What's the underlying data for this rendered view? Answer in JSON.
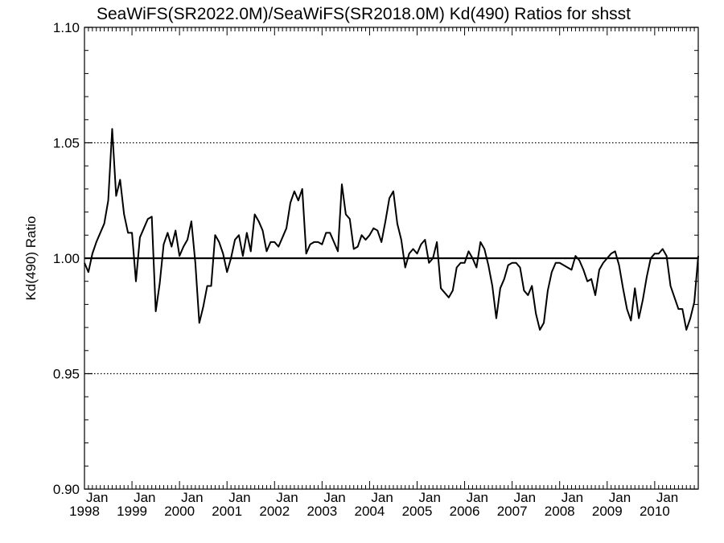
{
  "chart_data": {
    "type": "line",
    "title": "SeaWiFS(SR2022.0M)/SeaWiFS(SR2018.0M)  Kd(490) Ratios for shsst",
    "xlabel": "",
    "ylabel": "Kd(490) Ratio",
    "ylim": [
      0.9,
      1.1
    ],
    "xlim": [
      "1998-01",
      "2010-12"
    ],
    "y_ticks": [
      "0.90",
      "0.95",
      "1.00",
      "1.05",
      "1.10"
    ],
    "x_ticks": [
      {
        "month": "Jan",
        "year": "1998"
      },
      {
        "month": "Jan",
        "year": "1999"
      },
      {
        "month": "Jan",
        "year": "2000"
      },
      {
        "month": "Jan",
        "year": "2001"
      },
      {
        "month": "Jan",
        "year": "2002"
      },
      {
        "month": "Jan",
        "year": "2003"
      },
      {
        "month": "Jan",
        "year": "2004"
      },
      {
        "month": "Jan",
        "year": "2005"
      },
      {
        "month": "Jan",
        "year": "2006"
      },
      {
        "month": "Jan",
        "year": "2007"
      },
      {
        "month": "Jan",
        "year": "2008"
      },
      {
        "month": "Jan",
        "year": "2009"
      },
      {
        "month": "Jan",
        "year": "2010"
      }
    ],
    "reference_lines": [
      {
        "y": 1.0,
        "style": "solid"
      },
      {
        "y": 1.05,
        "style": "dotted"
      },
      {
        "y": 0.95,
        "style": "dotted"
      }
    ],
    "grid": false,
    "series": [
      {
        "x": [
          "1998-01",
          "1998-02",
          "1998-03",
          "1998-04",
          "1998-05",
          "1998-06",
          "1998-07",
          "1998-08",
          "1998-09",
          "1998-10",
          "1998-11",
          "1998-12",
          "1999-01",
          "1999-02",
          "1999-03",
          "1999-04",
          "1999-05",
          "1999-06",
          "1999-07",
          "1999-08",
          "1999-09",
          "1999-10",
          "1999-11",
          "1999-12",
          "2000-01",
          "2000-02",
          "2000-03",
          "2000-04",
          "2000-05",
          "2000-06",
          "2000-07",
          "2000-08",
          "2000-09",
          "2000-10",
          "2000-11",
          "2000-12",
          "2001-01",
          "2001-02",
          "2001-03",
          "2001-04",
          "2001-05",
          "2001-06",
          "2001-07",
          "2001-08",
          "2001-09",
          "2001-10",
          "2001-11",
          "2001-12",
          "2002-01",
          "2002-02",
          "2002-03",
          "2002-04",
          "2002-05",
          "2002-06",
          "2002-07",
          "2002-08",
          "2002-09",
          "2002-10",
          "2002-11",
          "2002-12",
          "2003-01",
          "2003-02",
          "2003-03",
          "2003-04",
          "2003-05",
          "2003-06",
          "2003-07",
          "2003-08",
          "2003-09",
          "2003-10",
          "2003-11",
          "2003-12",
          "2004-01",
          "2004-02",
          "2004-03",
          "2004-04",
          "2004-05",
          "2004-06",
          "2004-07",
          "2004-08",
          "2004-09",
          "2004-10",
          "2004-11",
          "2004-12",
          "2005-01",
          "2005-02",
          "2005-03",
          "2005-04",
          "2005-05",
          "2005-06",
          "2005-07",
          "2005-08",
          "2005-09",
          "2005-10",
          "2005-11",
          "2005-12",
          "2006-01",
          "2006-02",
          "2006-03",
          "2006-04",
          "2006-05",
          "2006-06",
          "2006-07",
          "2006-08",
          "2006-09",
          "2006-10",
          "2006-11",
          "2006-12",
          "2007-01",
          "2007-02",
          "2007-03",
          "2007-04",
          "2007-05",
          "2007-06",
          "2007-07",
          "2007-08",
          "2007-09",
          "2007-10",
          "2007-11",
          "2007-12",
          "2008-01",
          "2008-02",
          "2008-03",
          "2008-04",
          "2008-05",
          "2008-06",
          "2008-07",
          "2008-08",
          "2008-09",
          "2008-10",
          "2008-11",
          "2008-12",
          "2009-01",
          "2009-02",
          "2009-03",
          "2009-04",
          "2009-05",
          "2009-06",
          "2009-07",
          "2009-08",
          "2009-09",
          "2009-10",
          "2009-11",
          "2009-12",
          "2010-01",
          "2010-02",
          "2010-03",
          "2010-04",
          "2010-05",
          "2010-06",
          "2010-07",
          "2010-08",
          "2010-09",
          "2010-10",
          "2010-11",
          "2010-12"
        ],
        "values": [
          0.998,
          0.994,
          1.002,
          1.007,
          1.011,
          1.015,
          1.025,
          1.056,
          1.027,
          1.034,
          1.019,
          1.011,
          1.011,
          0.99,
          1.009,
          1.013,
          1.017,
          1.018,
          0.977,
          0.989,
          1.006,
          1.011,
          1.005,
          1.012,
          1.001,
          1.005,
          1.008,
          1.016,
          0.998,
          0.972,
          0.979,
          0.988,
          0.988,
          1.01,
          1.007,
          1.002,
          0.994,
          1.0,
          1.008,
          1.01,
          1.001,
          1.011,
          1.003,
          1.019,
          1.016,
          1.012,
          1.003,
          1.007,
          1.007,
          1.005,
          1.009,
          1.013,
          1.024,
          1.029,
          1.025,
          1.03,
          1.002,
          1.006,
          1.007,
          1.007,
          1.006,
          1.011,
          1.011,
          1.007,
          1.003,
          1.032,
          1.019,
          1.017,
          1.004,
          1.005,
          1.01,
          1.008,
          1.01,
          1.013,
          1.012,
          1.007,
          1.016,
          1.026,
          1.029,
          1.015,
          1.008,
          0.996,
          1.002,
          1.004,
          1.002,
          1.006,
          1.008,
          0.998,
          1.0,
          1.007,
          0.987,
          0.985,
          0.983,
          0.986,
          0.996,
          0.998,
          0.998,
          1.003,
          1.0,
          0.996,
          1.007,
          1.004,
          0.997,
          0.988,
          0.974,
          0.987,
          0.991,
          0.997,
          0.998,
          0.998,
          0.996,
          0.986,
          0.984,
          0.988,
          0.976,
          0.969,
          0.972,
          0.986,
          0.994,
          0.998,
          0.998,
          0.997,
          0.996,
          0.995,
          1.001,
          0.999,
          0.995,
          0.99,
          0.991,
          0.984,
          0.995,
          0.998,
          1.0,
          1.002,
          1.003,
          0.997,
          0.987,
          0.978,
          0.973,
          0.987,
          0.974,
          0.982,
          0.992,
          1.0,
          1.002,
          1.002,
          1.004,
          1.001,
          0.988,
          0.983,
          0.978,
          0.978,
          0.969,
          0.974,
          0.981,
          1.001
        ]
      }
    ],
    "colors": {
      "line": "#000000",
      "axes": "#000000",
      "background": "#ffffff"
    }
  }
}
